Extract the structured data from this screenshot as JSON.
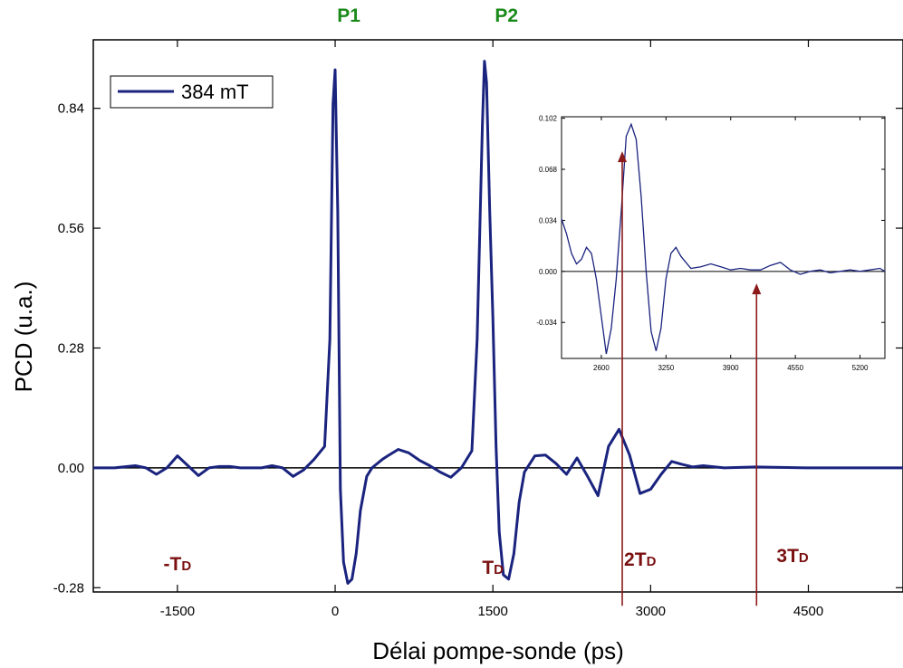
{
  "chart_data": [
    {
      "type": "line",
      "xlabel": "Délai pompe-sonde (ps)",
      "ylabel": "PCD (u.a.)",
      "xlim": [
        -2300,
        5400
      ],
      "ylim": [
        -0.29,
        1.0
      ],
      "xticks": [
        -1500,
        0,
        1500,
        3000,
        4500
      ],
      "xtick_labels": [
        "-1500",
        "0",
        "1500",
        "3000",
        "4500"
      ],
      "yticks": [
        -0.28,
        0.0,
        0.28,
        0.56,
        0.84
      ],
      "ytick_labels": [
        "-0.28",
        "0.00",
        "0.28",
        "0.56",
        "0.84"
      ],
      "grid": false,
      "legend_position": "top-left",
      "series": [
        {
          "name": "384 mT",
          "color": "#1a237e",
          "x": [
            -2300,
            -2100,
            -1900,
            -1800,
            -1700,
            -1600,
            -1500,
            -1400,
            -1300,
            -1200,
            -1100,
            -1000,
            -900,
            -800,
            -700,
            -600,
            -500,
            -400,
            -300,
            -200,
            -100,
            -50,
            -20,
            0,
            25,
            50,
            80,
            120,
            160,
            200,
            240,
            300,
            350,
            400,
            450,
            500,
            600,
            700,
            800,
            900,
            1000,
            1100,
            1200,
            1300,
            1350,
            1400,
            1420,
            1440,
            1470,
            1500,
            1530,
            1560,
            1600,
            1650,
            1700,
            1750,
            1800,
            1900,
            2000,
            2100,
            2200,
            2300,
            2400,
            2500,
            2600,
            2700,
            2800,
            2900,
            3000,
            3100,
            3200,
            3300,
            3400,
            3500,
            3700,
            4000,
            4500,
            5000,
            5400
          ],
          "y": [
            0.0,
            0.0,
            0.005,
            0.0,
            -0.015,
            0.0,
            0.028,
            0.005,
            -0.018,
            0.0,
            0.003,
            0.003,
            0.0,
            0.0,
            0.0,
            0.005,
            0.0,
            -0.02,
            -0.005,
            0.02,
            0.05,
            0.3,
            0.85,
            0.93,
            0.6,
            -0.05,
            -0.22,
            -0.27,
            -0.26,
            -0.2,
            -0.1,
            -0.02,
            0.0,
            0.01,
            0.02,
            0.028,
            0.043,
            0.035,
            0.018,
            0.005,
            -0.01,
            -0.022,
            0.0,
            0.04,
            0.3,
            0.8,
            0.95,
            0.9,
            0.6,
            0.35,
            0.05,
            -0.15,
            -0.25,
            -0.26,
            -0.2,
            -0.08,
            -0.01,
            0.028,
            0.03,
            0.01,
            -0.015,
            0.023,
            -0.02,
            -0.065,
            0.05,
            0.09,
            0.03,
            -0.06,
            -0.05,
            -0.015,
            0.015,
            0.008,
            0.002,
            0.005,
            0.0,
            0.002,
            0.0,
            0.0,
            0.0
          ]
        }
      ],
      "annotations": {
        "peaks": [
          {
            "label": "P1",
            "x": 0
          },
          {
            "label": "P2",
            "x": 1500
          }
        ],
        "periods": [
          {
            "main": "-T",
            "sub": "D",
            "x": -1500
          },
          {
            "main": "T",
            "sub": "D",
            "x": 1500
          },
          {
            "main": "2T",
            "sub": "D",
            "x": 2900
          },
          {
            "main": "3T",
            "sub": "D",
            "x": 4350
          }
        ],
        "arrows": [
          {
            "x": 2900,
            "from_y": -0.28,
            "to_y": 0.09
          },
          {
            "x": 4350,
            "from_y": -0.28,
            "to_y": 0.0
          }
        ]
      }
    },
    {
      "type": "line",
      "xlabel": "",
      "ylabel": "",
      "xlim": [
        2200,
        5450
      ],
      "ylim": [
        -0.058,
        0.103
      ],
      "xticks": [
        2600,
        3250,
        3900,
        4550,
        5200
      ],
      "xtick_labels": [
        "2600",
        "3250",
        "3900",
        "4550",
        "5200"
      ],
      "yticks": [
        -0.034,
        0.0,
        0.034,
        0.068,
        0.102
      ],
      "ytick_labels": [
        "-0.034",
        "0.000",
        "0.034",
        "0.068",
        "0.102"
      ],
      "grid": false,
      "series": [
        {
          "color": "#1a237e",
          "x": [
            2200,
            2250,
            2300,
            2350,
            2400,
            2450,
            2500,
            2550,
            2600,
            2650,
            2700,
            2750,
            2800,
            2850,
            2900,
            2950,
            3000,
            3050,
            3100,
            3150,
            3200,
            3250,
            3300,
            3350,
            3400,
            3500,
            3600,
            3700,
            3800,
            3900,
            4000,
            4100,
            4200,
            4300,
            4400,
            4500,
            4600,
            4700,
            4800,
            4900,
            5000,
            5100,
            5200,
            5300,
            5400,
            5450
          ],
          "y": [
            0.035,
            0.025,
            0.012,
            0.005,
            0.008,
            0.016,
            0.012,
            -0.005,
            -0.03,
            -0.055,
            -0.038,
            -0.005,
            0.04,
            0.09,
            0.098,
            0.088,
            0.05,
            0.0,
            -0.04,
            -0.053,
            -0.038,
            -0.005,
            0.012,
            0.016,
            0.01,
            0.002,
            0.003,
            0.005,
            0.003,
            0.001,
            0.002,
            0.001,
            0.001,
            0.004,
            0.006,
            0.001,
            -0.002,
            0.0,
            0.001,
            -0.001,
            0.0,
            0.001,
            0.0,
            0.001,
            0.002,
            0.0
          ]
        }
      ],
      "arrows": [
        {
          "x": 2810,
          "from_y": -0.058,
          "to_y": 0.08
        },
        {
          "x": 4160,
          "from_y": -0.058,
          "to_y": -0.008
        }
      ]
    }
  ]
}
